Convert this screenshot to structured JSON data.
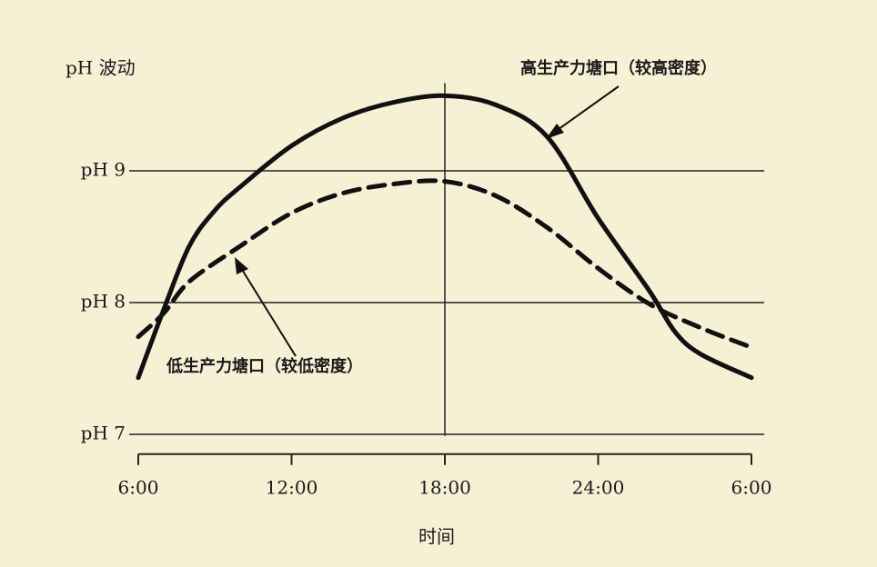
{
  "chart_data": {
    "type": "line",
    "ylabel": "pH 波动",
    "xlabel": "时间",
    "x": [
      6,
      7,
      8,
      9,
      10,
      12,
      14,
      16,
      18,
      20,
      22,
      24,
      26,
      27,
      28,
      30
    ],
    "series": [
      {
        "name": "高生产力塘口（较高密度）",
        "color": "#111111",
        "style": "solid",
        "values": [
          7.43,
          7.95,
          8.43,
          8.7,
          8.88,
          9.19,
          9.4,
          9.52,
          9.57,
          9.5,
          9.26,
          8.64,
          8.09,
          7.78,
          7.61,
          7.43
        ]
      },
      {
        "name": "低生产力塘口（较低密度）",
        "color": "#111111",
        "style": "dashed",
        "values": [
          7.74,
          7.92,
          8.16,
          null,
          8.43,
          8.68,
          8.83,
          8.9,
          8.92,
          8.81,
          8.57,
          8.26,
          7.99,
          null,
          7.81,
          7.66
        ]
      }
    ],
    "xlim": [
      6,
      30
    ],
    "xticks": [
      {
        "value": 6,
        "label": "6:00"
      },
      {
        "value": 12,
        "label": "12:00"
      },
      {
        "value": 18,
        "label": "18:00"
      },
      {
        "value": 24,
        "label": "24:00"
      },
      {
        "value": 30,
        "label": "6:00"
      }
    ],
    "ylim": [
      6.85,
      9.7
    ],
    "yticks": [
      {
        "value": 7,
        "label": "pH 7"
      },
      {
        "value": 8,
        "label": "pH 8"
      },
      {
        "value": 9,
        "label": "pH 9"
      }
    ],
    "vline_x": 18,
    "grid": true
  }
}
